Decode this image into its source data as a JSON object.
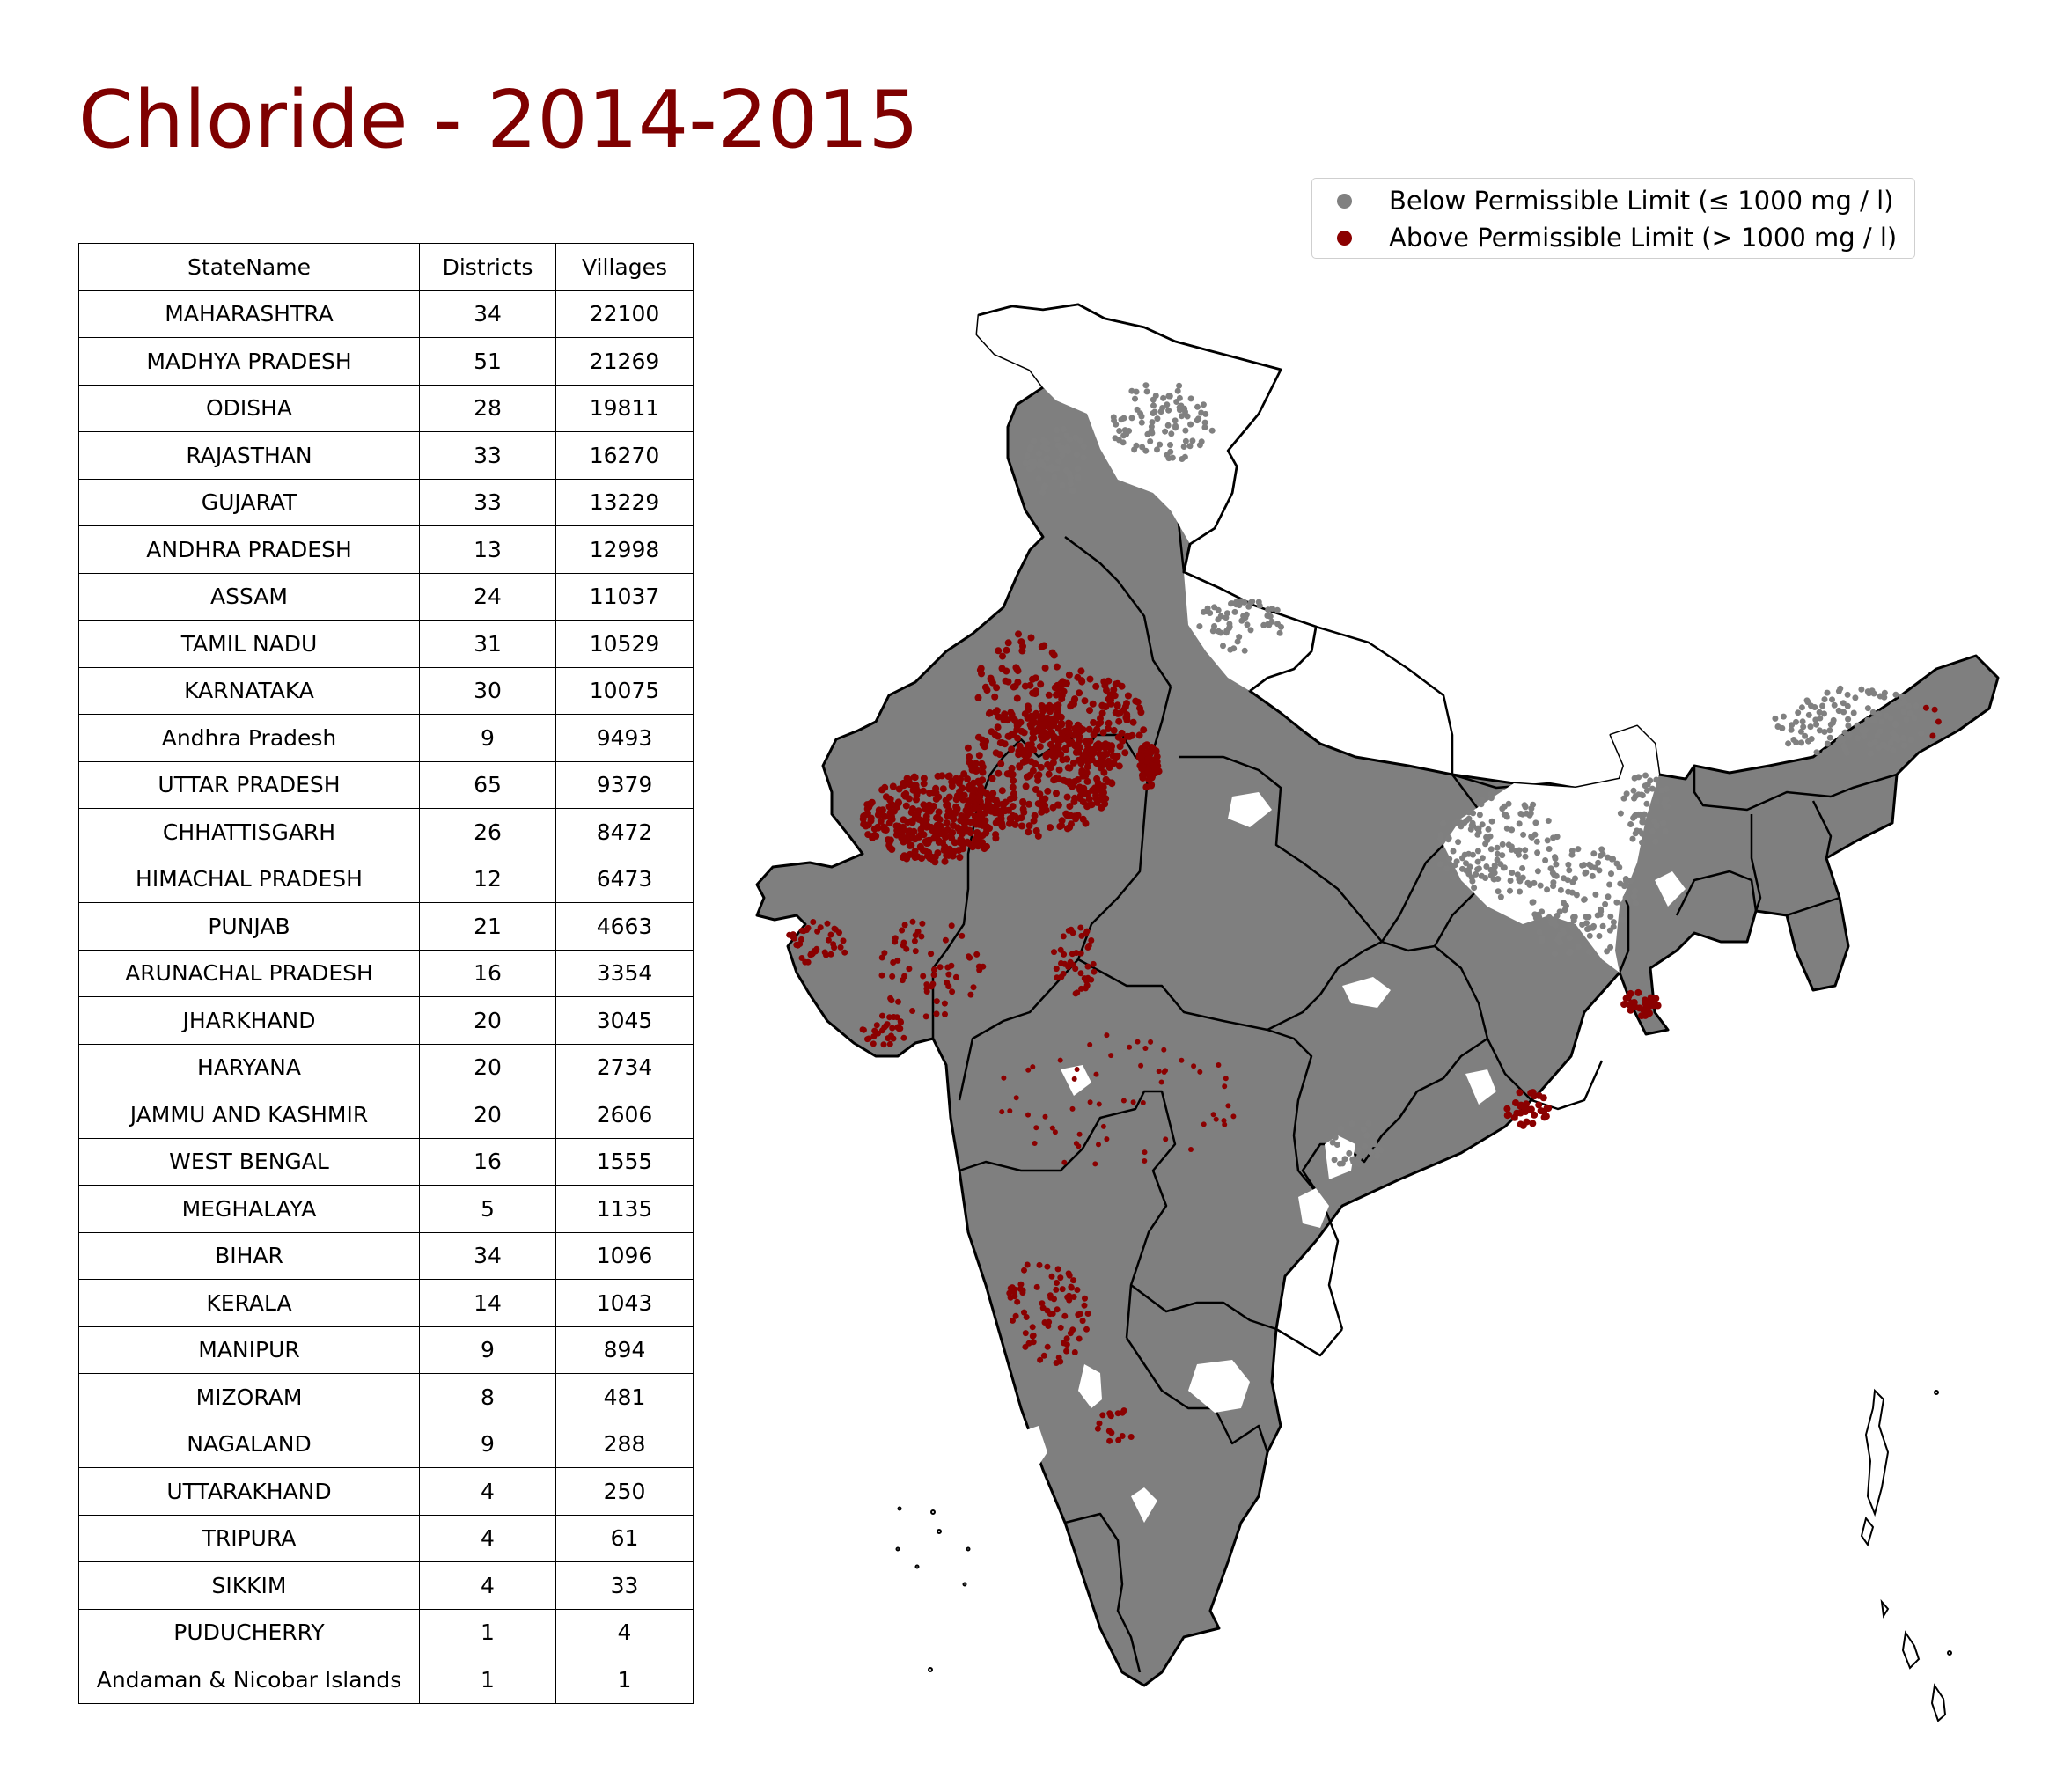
{
  "title": "Chloride - 2014-2015",
  "colors": {
    "title": "#7f0000",
    "below": "#808080",
    "above": "#8b0000",
    "land_fill": "#7f7f7f",
    "boundary": "#000000"
  },
  "legend": {
    "position": "top-right",
    "items": [
      {
        "label": "Below Permissible Limit (≤ 1000 mg / l)",
        "color": "#808080"
      },
      {
        "label": "Above Permissible Limit (> 1000 mg / l)",
        "color": "#8b0000"
      }
    ]
  },
  "table": {
    "columns": [
      "StateName",
      "Districts",
      "Villages"
    ],
    "rows": [
      [
        "MAHARASHTRA",
        "34",
        "22100"
      ],
      [
        "MADHYA PRADESH",
        "51",
        "21269"
      ],
      [
        "ODISHA",
        "28",
        "19811"
      ],
      [
        "RAJASTHAN",
        "33",
        "16270"
      ],
      [
        "GUJARAT",
        "33",
        "13229"
      ],
      [
        "ANDHRA PRADESH",
        "13",
        "12998"
      ],
      [
        "ASSAM",
        "24",
        "11037"
      ],
      [
        "TAMIL NADU",
        "31",
        "10529"
      ],
      [
        "KARNATAKA",
        "30",
        "10075"
      ],
      [
        "Andhra Pradesh",
        "9",
        "9493"
      ],
      [
        "UTTAR PRADESH",
        "65",
        "9379"
      ],
      [
        "CHHATTISGARH",
        "26",
        "8472"
      ],
      [
        "HIMACHAL PRADESH",
        "12",
        "6473"
      ],
      [
        "PUNJAB",
        "21",
        "4663"
      ],
      [
        "ARUNACHAL PRADESH",
        "16",
        "3354"
      ],
      [
        "JHARKHAND",
        "20",
        "3045"
      ],
      [
        "HARYANA",
        "20",
        "2734"
      ],
      [
        "JAMMU AND KASHMIR",
        "20",
        "2606"
      ],
      [
        "WEST BENGAL",
        "16",
        "1555"
      ],
      [
        "MEGHALAYA",
        "5",
        "1135"
      ],
      [
        "BIHAR",
        "34",
        "1096"
      ],
      [
        "KERALA",
        "14",
        "1043"
      ],
      [
        "MANIPUR",
        "9",
        "894"
      ],
      [
        "MIZORAM",
        "8",
        "481"
      ],
      [
        "NAGALAND",
        "9",
        "288"
      ],
      [
        "UTTARAKHAND",
        "4",
        "250"
      ],
      [
        "TRIPURA",
        "4",
        "61"
      ],
      [
        "SIKKIM",
        "4",
        "33"
      ],
      [
        "PUDUCHERRY",
        "1",
        "4"
      ],
      [
        "Andaman & Nicobar Islands",
        "1",
        "1"
      ]
    ]
  }
}
